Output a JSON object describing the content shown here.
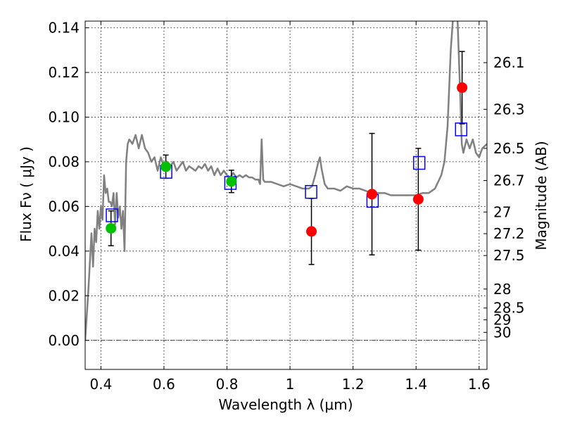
{
  "chart_data": {
    "type": "scatter",
    "xlabel": "Wavelength  λ (μm)",
    "ylabel": "Flux  Fν  ( μJy )",
    "y2label": "Magnitude (AB)",
    "xlim": [
      0.35,
      1.625
    ],
    "ylim": [
      -0.013,
      0.143
    ],
    "xticks": [
      {
        "value": 0.4,
        "label": "0.4"
      },
      {
        "value": 0.6,
        "label": "0.6"
      },
      {
        "value": 0.8,
        "label": "0.8"
      },
      {
        "value": 1.0,
        "label": "1"
      },
      {
        "value": 1.2,
        "label": "1.2"
      },
      {
        "value": 1.4,
        "label": "1.4"
      },
      {
        "value": 1.6,
        "label": "1.6"
      }
    ],
    "yticks": [
      {
        "value": 0.0,
        "label": "0.00"
      },
      {
        "value": 0.02,
        "label": "0.02"
      },
      {
        "value": 0.04,
        "label": "0.04"
      },
      {
        "value": 0.06,
        "label": "0.06"
      },
      {
        "value": 0.08,
        "label": "0.08"
      },
      {
        "value": 0.1,
        "label": "0.10"
      },
      {
        "value": 0.12,
        "label": "0.12"
      },
      {
        "value": 0.14,
        "label": "0.14"
      }
    ],
    "y2ticks": [
      {
        "flux": 0.1244,
        "label": "26.1"
      },
      {
        "flux": 0.1035,
        "label": "26.3"
      },
      {
        "flux": 0.086,
        "label": "26.5"
      },
      {
        "flux": 0.0716,
        "label": "26.7"
      },
      {
        "flux": 0.0575,
        "label": "27"
      },
      {
        "flux": 0.0478,
        "label": "27.2"
      },
      {
        "flux": 0.038,
        "label": "27.5"
      },
      {
        "flux": 0.023,
        "label": "28"
      },
      {
        "flux": 0.0145,
        "label": "28.5"
      },
      {
        "flux": 0.0092,
        "label": "29"
      },
      {
        "flux": 0.0036,
        "label": "30"
      }
    ],
    "grid": true,
    "zero_line": true,
    "model_spectrum": {
      "color": "#808080",
      "points": [
        [
          0.35,
          0.0
        ],
        [
          0.36,
          0.022
        ],
        [
          0.37,
          0.048
        ],
        [
          0.375,
          0.033
        ],
        [
          0.38,
          0.05
        ],
        [
          0.385,
          0.044
        ],
        [
          0.39,
          0.058
        ],
        [
          0.395,
          0.05
        ],
        [
          0.4,
          0.06
        ],
        [
          0.405,
          0.054
        ],
        [
          0.41,
          0.074
        ],
        [
          0.415,
          0.066
        ],
        [
          0.42,
          0.068
        ],
        [
          0.425,
          0.062
        ],
        [
          0.43,
          0.062
        ],
        [
          0.435,
          0.06
        ],
        [
          0.44,
          0.066
        ],
        [
          0.445,
          0.052
        ],
        [
          0.45,
          0.066
        ],
        [
          0.455,
          0.055
        ],
        [
          0.46,
          0.06
        ],
        [
          0.465,
          0.05
        ],
        [
          0.47,
          0.058
        ],
        [
          0.475,
          0.04
        ],
        [
          0.48,
          0.08
        ],
        [
          0.485,
          0.088
        ],
        [
          0.49,
          0.09
        ],
        [
          0.5,
          0.088
        ],
        [
          0.51,
          0.092
        ],
        [
          0.52,
          0.086
        ],
        [
          0.53,
          0.092
        ],
        [
          0.54,
          0.086
        ],
        [
          0.55,
          0.084
        ],
        [
          0.56,
          0.08
        ],
        [
          0.57,
          0.082
        ],
        [
          0.58,
          0.076
        ],
        [
          0.59,
          0.082
        ],
        [
          0.6,
          0.078
        ],
        [
          0.61,
          0.08
        ],
        [
          0.62,
          0.078
        ],
        [
          0.63,
          0.08
        ],
        [
          0.64,
          0.076
        ],
        [
          0.65,
          0.078
        ],
        [
          0.66,
          0.08
        ],
        [
          0.67,
          0.076
        ],
        [
          0.68,
          0.078
        ],
        [
          0.69,
          0.077
        ],
        [
          0.7,
          0.076
        ],
        [
          0.71,
          0.078
        ],
        [
          0.72,
          0.077
        ],
        [
          0.73,
          0.079
        ],
        [
          0.74,
          0.076
        ],
        [
          0.75,
          0.078
        ],
        [
          0.76,
          0.074
        ],
        [
          0.77,
          0.077
        ],
        [
          0.78,
          0.074
        ],
        [
          0.79,
          0.076
        ],
        [
          0.8,
          0.074
        ],
        [
          0.81,
          0.073
        ],
        [
          0.82,
          0.075
        ],
        [
          0.83,
          0.073
        ],
        [
          0.84,
          0.074
        ],
        [
          0.85,
          0.073
        ],
        [
          0.86,
          0.074
        ],
        [
          0.87,
          0.073
        ],
        [
          0.88,
          0.073
        ],
        [
          0.89,
          0.072
        ],
        [
          0.9,
          0.072
        ],
        [
          0.905,
          0.07
        ],
        [
          0.91,
          0.09
        ],
        [
          0.915,
          0.072
        ],
        [
          0.92,
          0.071
        ],
        [
          0.94,
          0.071
        ],
        [
          0.96,
          0.07
        ],
        [
          0.98,
          0.069
        ],
        [
          1.0,
          0.07
        ],
        [
          1.02,
          0.069
        ],
        [
          1.04,
          0.068
        ],
        [
          1.06,
          0.068
        ],
        [
          1.07,
          0.069
        ],
        [
          1.08,
          0.074
        ],
        [
          1.09,
          0.08
        ],
        [
          1.095,
          0.082
        ],
        [
          1.1,
          0.077
        ],
        [
          1.11,
          0.07
        ],
        [
          1.12,
          0.068
        ],
        [
          1.14,
          0.068
        ],
        [
          1.16,
          0.067
        ],
        [
          1.18,
          0.069
        ],
        [
          1.2,
          0.068
        ],
        [
          1.22,
          0.068
        ],
        [
          1.24,
          0.067
        ],
        [
          1.26,
          0.066
        ],
        [
          1.28,
          0.066
        ],
        [
          1.3,
          0.066
        ],
        [
          1.32,
          0.065
        ],
        [
          1.34,
          0.065
        ],
        [
          1.36,
          0.065
        ],
        [
          1.38,
          0.065
        ],
        [
          1.4,
          0.065
        ],
        [
          1.42,
          0.066
        ],
        [
          1.44,
          0.066
        ],
        [
          1.46,
          0.068
        ],
        [
          1.48,
          0.074
        ],
        [
          1.49,
          0.08
        ],
        [
          1.5,
          0.096
        ],
        [
          1.51,
          0.13
        ],
        [
          1.52,
          0.15
        ],
        [
          1.53,
          0.15
        ],
        [
          1.54,
          0.11
        ],
        [
          1.545,
          0.088
        ],
        [
          1.55,
          0.084
        ],
        [
          1.56,
          0.09
        ],
        [
          1.57,
          0.086
        ],
        [
          1.58,
          0.09
        ],
        [
          1.59,
          0.084
        ],
        [
          1.6,
          0.082
        ],
        [
          1.61,
          0.086
        ],
        [
          1.625,
          0.088
        ]
      ]
    },
    "model_points": {
      "color": "#0000ff",
      "marker": "open-square",
      "x": [
        0.435,
        0.607,
        0.811,
        1.067,
        1.262,
        1.41,
        1.543
      ],
      "y": [
        0.056,
        0.0755,
        0.0705,
        0.0665,
        0.0625,
        0.0795,
        0.0945
      ]
    },
    "obs_optical": {
      "color": "#00c000",
      "marker": "filled-circle",
      "x": [
        0.432,
        0.606,
        0.814
      ],
      "y": [
        0.0502,
        0.0778,
        0.0712
      ],
      "yerr": [
        0.0078,
        0.0052,
        0.005
      ]
    },
    "obs_ir": {
      "color": "#ff0000",
      "marker": "filled-circle",
      "x": [
        1.068,
        1.26,
        1.407,
        1.546
      ],
      "y": [
        0.0488,
        0.0655,
        0.0632,
        0.1132
      ],
      "yerr": [
        0.0148,
        0.0272,
        0.0228,
        0.0162
      ]
    }
  }
}
